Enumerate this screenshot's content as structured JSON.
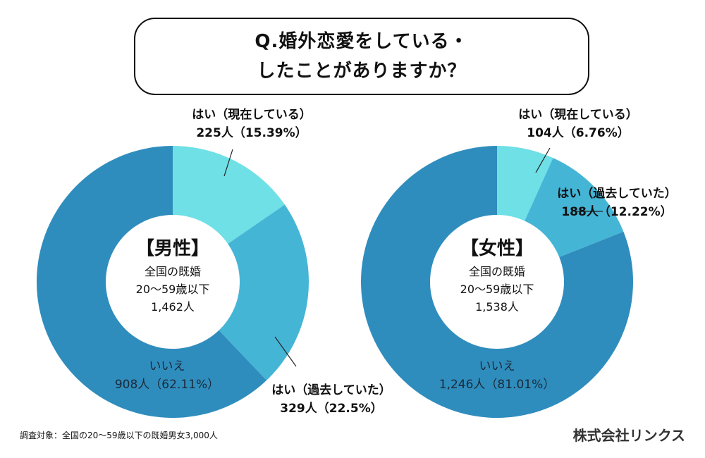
{
  "title": {
    "line1": "Q.婚外恋愛をしている・",
    "line2": "したことがありますか？"
  },
  "chart_data": [
    {
      "type": "pie",
      "donut": true,
      "group": "【男性】",
      "center_lines": [
        "全国の既婚",
        "20〜59歳以下",
        "1,462人"
      ],
      "slices": [
        {
          "name": "はい（現在している）",
          "count_label": "225人（15.39%）",
          "count": 225,
          "percent": 15.39,
          "color": "#6ee0e6"
        },
        {
          "name": "はい（過去していた）",
          "count_label": "329人（22.5%）",
          "count": 329,
          "percent": 22.5,
          "color": "#45b5d6"
        },
        {
          "name": "いいえ",
          "count_label": "908人（62.11%）",
          "count": 908,
          "percent": 62.11,
          "color": "#2f8dbd"
        }
      ]
    },
    {
      "type": "pie",
      "donut": true,
      "group": "【女性】",
      "center_lines": [
        "全国の既婚",
        "20〜59歳以下",
        "1,538人"
      ],
      "slices": [
        {
          "name": "はい（現在している）",
          "count_label": "104人（6.76%）",
          "count": 104,
          "percent": 6.76,
          "color": "#6ee0e6"
        },
        {
          "name": "はい（過去していた）",
          "count_label": "188人（12.22%）",
          "count": 188,
          "percent": 12.22,
          "color": "#45b5d6"
        },
        {
          "name": "いいえ",
          "count_label": "1,246人（81.01%）",
          "count": 1246,
          "percent": 81.01,
          "color": "#2f8dbd"
        }
      ]
    }
  ],
  "footnote": "調査対象：全国の20〜59歳以下の既婚男女3,000人",
  "company": "株式会社リンクス"
}
